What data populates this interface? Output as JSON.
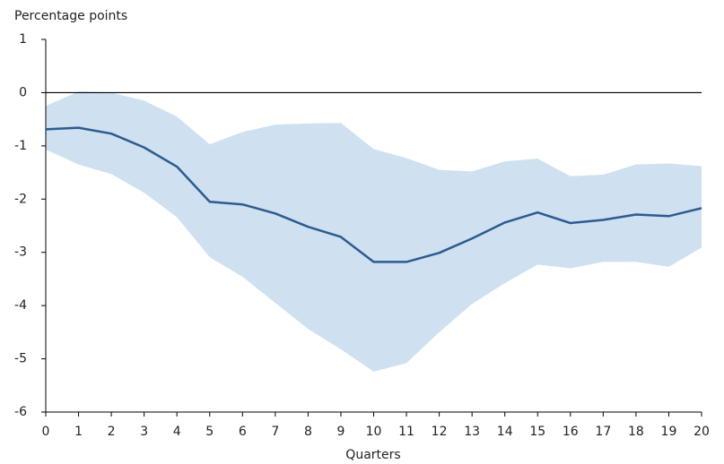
{
  "chart_data": {
    "type": "line",
    "y_label": "Percentage points",
    "x_label": "Quarters",
    "x": [
      0,
      1,
      2,
      3,
      4,
      5,
      6,
      7,
      8,
      9,
      10,
      11,
      12,
      13,
      14,
      15,
      16,
      17,
      18,
      19,
      20
    ],
    "series": [
      {
        "color": "#2b5c8f",
        "values": [
          -0.69,
          -0.66,
          -0.77,
          -1.03,
          -1.39,
          -2.05,
          -2.1,
          -2.27,
          -2.52,
          -2.71,
          -3.18,
          -3.18,
          -3.01,
          -2.74,
          -2.44,
          -2.25,
          -2.45,
          -2.39,
          -2.29,
          -2.32,
          -2.17
        ]
      }
    ],
    "band": {
      "color": "#cfe0f1",
      "upper": [
        -0.25,
        0.02,
        0.0,
        -0.15,
        -0.45,
        -0.97,
        -0.74,
        -0.6,
        -0.58,
        -0.57,
        -1.06,
        -1.23,
        -1.45,
        -1.48,
        -1.29,
        -1.24,
        -1.57,
        -1.54,
        -1.35,
        -1.33,
        -1.38
      ],
      "lower": [
        -1.07,
        -1.35,
        -1.53,
        -1.88,
        -2.34,
        -3.09,
        -3.46,
        -3.95,
        -4.44,
        -4.82,
        -5.24,
        -5.08,
        -4.5,
        -3.97,
        -3.58,
        -3.23,
        -3.3,
        -3.18,
        -3.18,
        -3.27,
        -2.91
      ]
    },
    "hline": 0,
    "xlim": [
      0,
      20
    ],
    "xticks": [
      0,
      1,
      2,
      3,
      4,
      5,
      6,
      7,
      8,
      9,
      10,
      11,
      12,
      13,
      14,
      15,
      16,
      17,
      18,
      19,
      20
    ],
    "ylim": [
      -6,
      1
    ],
    "yticks": [
      -6,
      -5,
      -4,
      -3,
      -2,
      -1,
      0,
      1
    ]
  }
}
